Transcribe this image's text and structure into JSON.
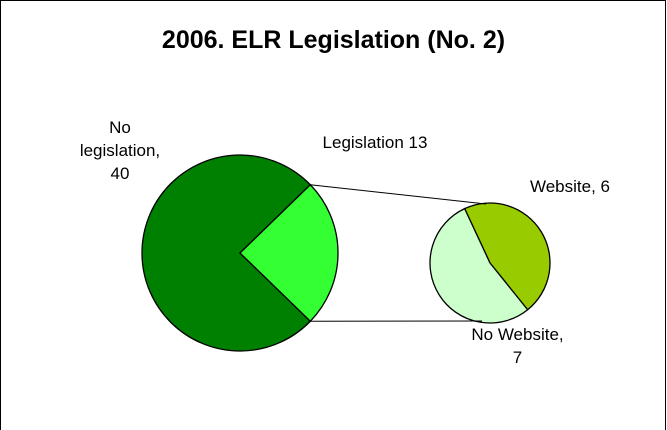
{
  "chart_data": {
    "type": "pie_of_pie",
    "title": "2006. ELR Legislation (No. 2)",
    "categories": [
      "No legislation,",
      "Legislation"
    ],
    "values": [
      40,
      13
    ],
    "colors": [
      "#008000",
      "#33ff33"
    ],
    "sub": {
      "categories": [
        "Website,",
        "No Website,"
      ],
      "values": [
        6,
        7
      ],
      "colors": [
        "#99cc00",
        "#ccffcc"
      ]
    }
  }
}
